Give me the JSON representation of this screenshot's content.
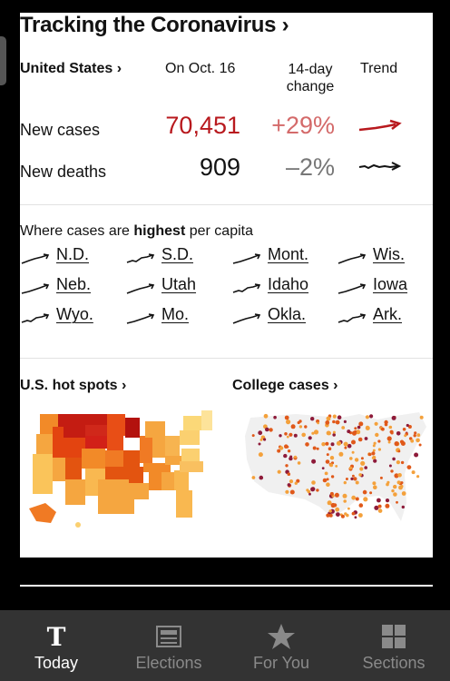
{
  "header": {
    "title": "Tracking the Coronavirus ›"
  },
  "table": {
    "region": "United States ›",
    "date_col": "On Oct. 16",
    "change_col_line1": "14-day",
    "change_col_line2": "change",
    "trend_col": "Trend",
    "rows": [
      {
        "label": "New cases",
        "value": "70,451",
        "change": "+29%",
        "trend_color": "#b8191e"
      },
      {
        "label": "New deaths",
        "value": "909",
        "change": "–2%",
        "trend_color": "#121212"
      }
    ]
  },
  "highest": {
    "title_pre": "Where cases are ",
    "title_bold": "highest",
    "title_post": " per capita",
    "states": [
      "N.D.",
      "S.D.",
      "Mont.",
      "Wis.",
      "Neb.",
      "Utah",
      "Idaho",
      "Iowa",
      "Wyo.",
      "Mo.",
      "Okla.",
      "Ark."
    ]
  },
  "sections": {
    "hotspots": "U.S. hot spots ›",
    "college": "College cases ›"
  },
  "nav": [
    {
      "label": "Today",
      "icon": "nyt-logo-icon",
      "active": true
    },
    {
      "label": "Elections",
      "icon": "ballot-icon",
      "active": false
    },
    {
      "label": "For You",
      "icon": "star-icon",
      "active": false
    },
    {
      "label": "Sections",
      "icon": "grid-icon",
      "active": false
    }
  ],
  "colors": {
    "cases_red": "#b8191e",
    "change_red": "#d46a6a",
    "nav_bg": "#333333",
    "nav_active": "#ffffff",
    "nav_inactive": "#8a8a8a"
  }
}
